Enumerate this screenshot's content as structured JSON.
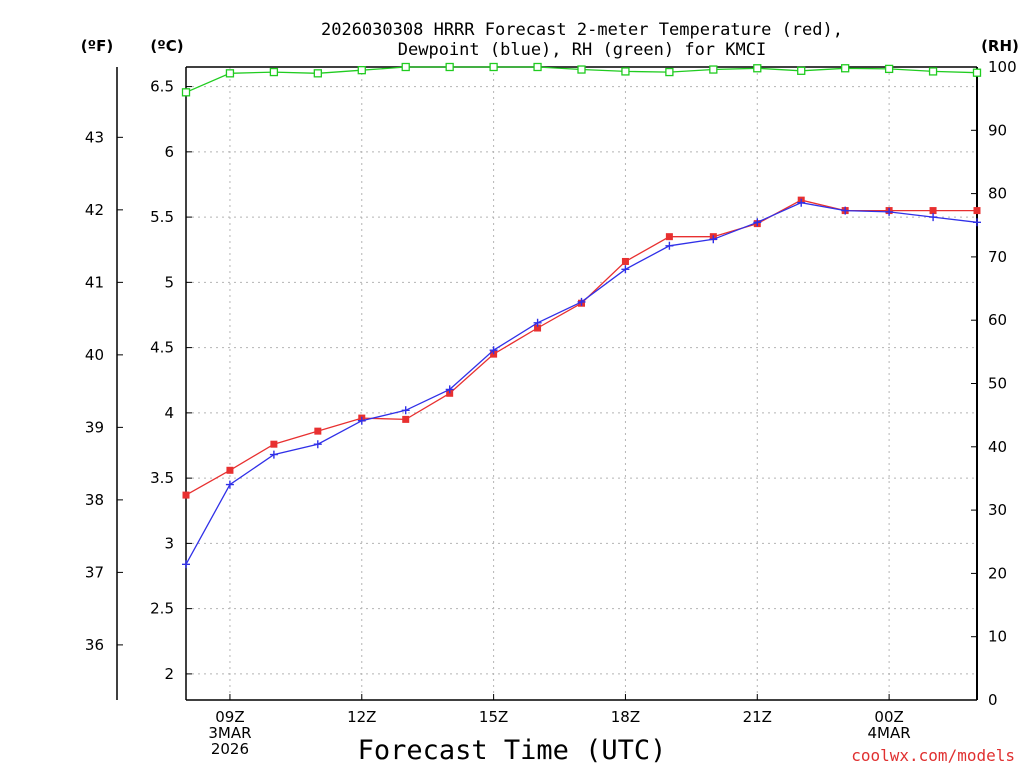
{
  "chart_data": {
    "type": "line",
    "title": [
      "2026030308 HRRR Forecast 2-meter Temperature (red),",
      "Dewpoint (blue), RH (green) for KMCI"
    ],
    "xlabel": "Forecast Time (UTC)",
    "units": {
      "fahrenheit": "(ºF)",
      "celsius": "(ºC)",
      "rh": "(RH)"
    },
    "x_hours": [
      8,
      9,
      10,
      11,
      12,
      13,
      14,
      15,
      16,
      17,
      18,
      19,
      20,
      21,
      22,
      23,
      24,
      25,
      26
    ],
    "xlim": [
      8,
      26
    ],
    "x_ticks": [
      {
        "hour": 9,
        "lines": [
          "09Z",
          "3MAR",
          "2026"
        ]
      },
      {
        "hour": 12,
        "lines": [
          "12Z"
        ]
      },
      {
        "hour": 15,
        "lines": [
          "15Z"
        ]
      },
      {
        "hour": 18,
        "lines": [
          "18Z"
        ]
      },
      {
        "hour": 21,
        "lines": [
          "21Z"
        ]
      },
      {
        "hour": 24,
        "lines": [
          "00Z",
          "4MAR"
        ]
      }
    ],
    "ylim_c": [
      1.8,
      6.65
    ],
    "y_ticks_c": [
      "2",
      "2.5",
      "3",
      "3.5",
      "4",
      "4.5",
      "5",
      "5.5",
      "6",
      "6.5"
    ],
    "y_ticks_f": [
      "36",
      "37",
      "38",
      "39",
      "40",
      "41",
      "42",
      "43"
    ],
    "ylim_rh": [
      0,
      100
    ],
    "y_ticks_rh": [
      "0",
      "10",
      "20",
      "30",
      "40",
      "50",
      "60",
      "70",
      "80",
      "90",
      "100"
    ],
    "series": [
      {
        "name": "Temperature",
        "color": "#e83030",
        "marker": "filled-square",
        "axis": "celsius",
        "values": [
          3.37,
          3.56,
          3.76,
          3.86,
          3.96,
          3.95,
          4.15,
          4.45,
          4.65,
          4.84,
          5.16,
          5.35,
          5.35,
          5.45,
          5.63,
          5.55,
          5.55,
          5.55,
          5.55
        ]
      },
      {
        "name": "Dewpoint",
        "color": "#3030e8",
        "marker": "plus",
        "axis": "celsius",
        "values": [
          2.84,
          3.45,
          3.68,
          3.76,
          3.94,
          4.02,
          4.18,
          4.48,
          4.69,
          4.85,
          5.1,
          5.28,
          5.33,
          5.46,
          5.61,
          5.55,
          5.54,
          5.5,
          5.46
        ]
      },
      {
        "name": "RH",
        "color": "#20cc20",
        "marker": "hollow-square",
        "axis": "rh",
        "values": [
          96,
          99,
          99.2,
          99,
          99.5,
          100,
          100,
          100,
          100,
          99.6,
          99.3,
          99.2,
          99.6,
          99.8,
          99.4,
          99.8,
          99.7,
          99.3,
          99.1
        ]
      }
    ]
  },
  "credit": "coolwx.com/models"
}
